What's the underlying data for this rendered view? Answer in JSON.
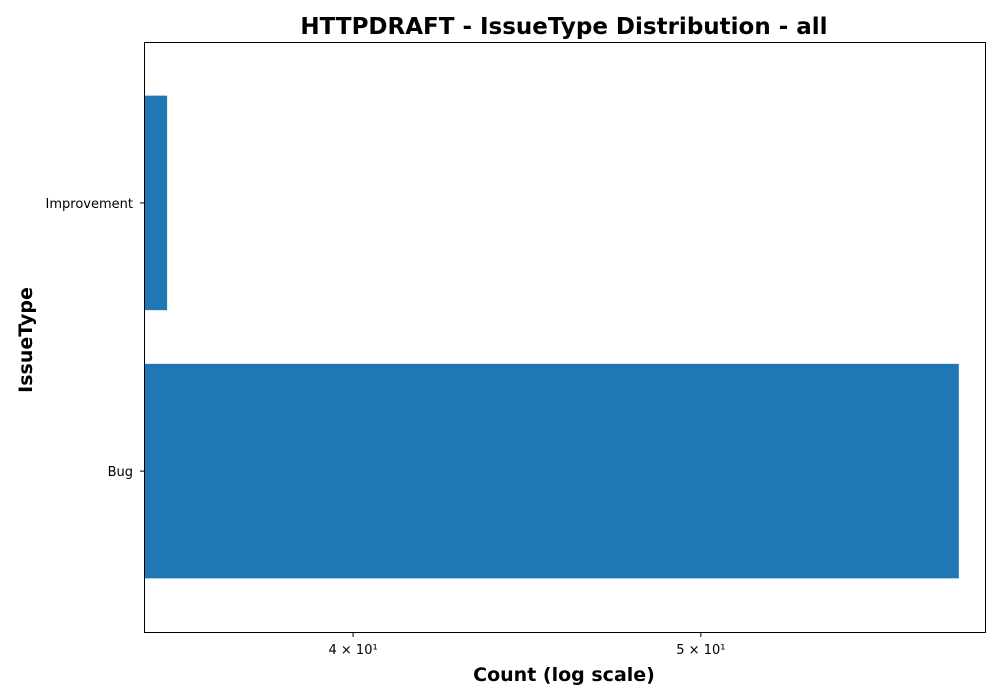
{
  "chart_data": {
    "type": "bar",
    "orientation": "horizontal",
    "title": "HTTPDRAFT - IssueType Distribution - all",
    "xlabel": "Count (log scale)",
    "ylabel": "IssueType",
    "x_scale": "log",
    "xlim": [
      35,
      60
    ],
    "x_ticks": [
      {
        "value": 40,
        "label": "4 × 10¹"
      },
      {
        "value": 50,
        "label": "5 × 10¹"
      }
    ],
    "categories": [
      "Bug",
      "Improvement"
    ],
    "values": [
      59,
      35.5
    ],
    "bar_color": "#1f77b4",
    "grid": false,
    "legend": "none"
  }
}
